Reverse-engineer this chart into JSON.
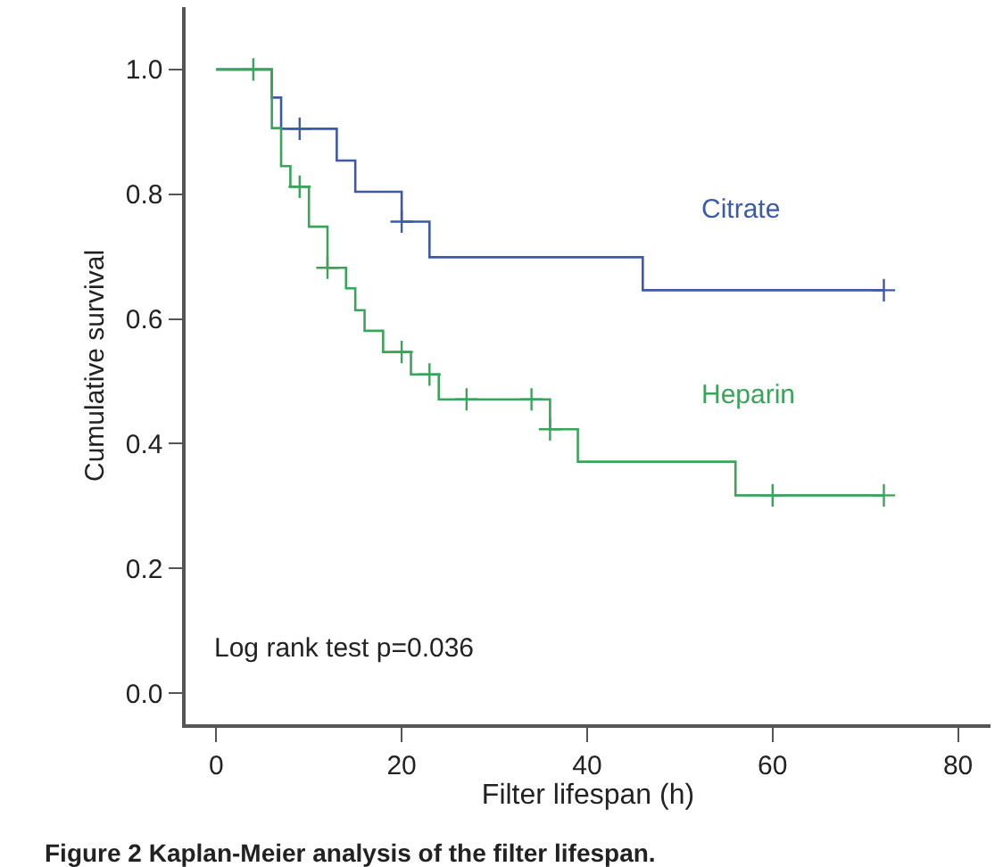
{
  "chart_data": {
    "type": "step",
    "xlabel": "Filter lifespan (h)",
    "ylabel": "Cumulative survival",
    "xlim": [
      -3.3,
      83.5
    ],
    "xticks": [
      0,
      20,
      40,
      60,
      80
    ],
    "ylim": [
      -0.05,
      1.1
    ],
    "yticks": [
      {
        "value": 0,
        "label": "0.0"
      },
      {
        "value": 0.2,
        "label": "0.2"
      },
      {
        "value": 0.4,
        "label": "0.4"
      },
      {
        "value": 0.6,
        "label": "0.6"
      },
      {
        "value": 0.8,
        "label": "0.8"
      },
      {
        "value": 1,
        "label": "1.0"
      }
    ],
    "legend": false,
    "line_style": "solid",
    "series": [
      {
        "name": "Citrate",
        "color": "#3d5aa8",
        "x": [
          0,
          6,
          7,
          13,
          15,
          20,
          23,
          46,
          72
        ],
        "values": [
          1.0,
          0.955,
          0.905,
          0.854,
          0.804,
          0.756,
          0.699,
          0.646,
          0.646
        ]
      },
      {
        "name": "Heparin",
        "color": "#3aa55a",
        "x": [
          0,
          6,
          7,
          8,
          10,
          12,
          14,
          15,
          16,
          18,
          21,
          24,
          36,
          39,
          56,
          72
        ],
        "values": [
          1.0,
          0.906,
          0.845,
          0.812,
          0.748,
          0.682,
          0.649,
          0.614,
          0.581,
          0.547,
          0.511,
          0.471,
          0.423,
          0.371,
          0.317,
          0.317
        ]
      },
      {
        "type": "scatter",
        "marker": "cross",
        "color": "#3d5aa8",
        "x": [
          9,
          20,
          72
        ],
        "values": [
          0.905,
          0.756,
          0.646
        ]
      },
      {
        "type": "scatter",
        "marker": "cross",
        "color": "#3aa55a",
        "x": [
          4,
          9,
          12,
          20,
          23,
          27,
          34,
          36,
          60,
          72
        ],
        "values": [
          1.0,
          0.812,
          0.682,
          0.547,
          0.511,
          0.471,
          0.471,
          0.423,
          0.317,
          0.317
        ]
      }
    ],
    "annotations": [
      "Log rank test p=0.036",
      "Figure 2 Kaplan-Meier analysis of the filter lifespan."
    ]
  }
}
